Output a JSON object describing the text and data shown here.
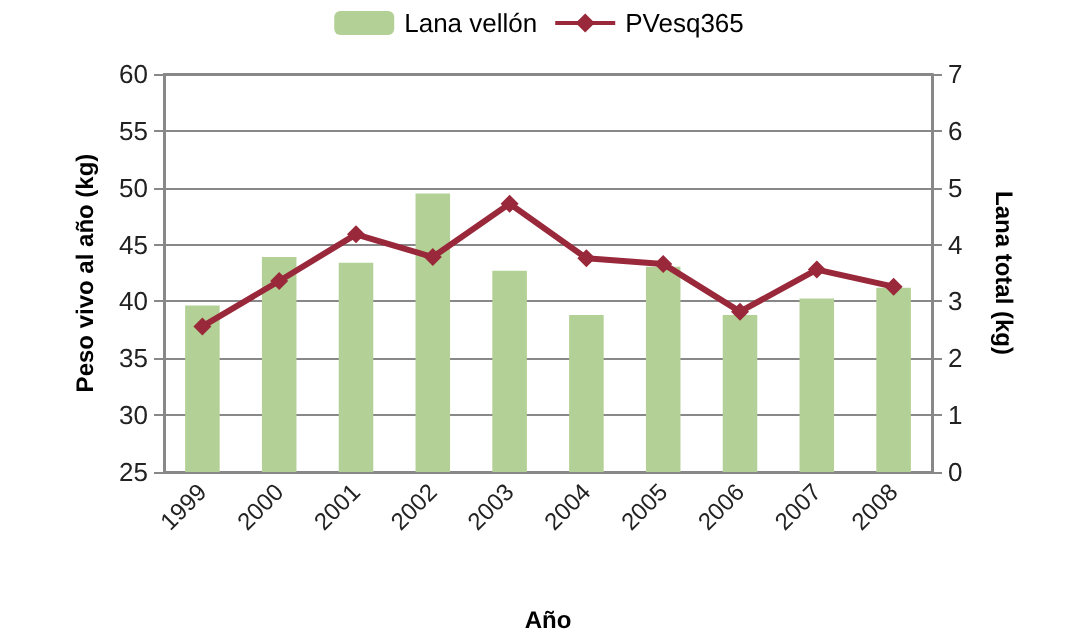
{
  "chart_data": {
    "type": "bar",
    "xlabel": "Año",
    "ylabel": "Peso vivo al año (kg)",
    "y2label": "Lana total (kg)",
    "categories": [
      "1999",
      "2000",
      "2001",
      "2002",
      "2003",
      "2004",
      "2005",
      "2006",
      "2007",
      "2008"
    ],
    "series": [
      {
        "name": "Lana vellón",
        "axis": "y2",
        "color": "#b3d196",
        "values": [
          2.93,
          3.78,
          3.68,
          4.9,
          3.54,
          2.76,
          3.61,
          2.76,
          3.05,
          3.24
        ]
      },
      {
        "name": "PVesq365",
        "type": "line",
        "color": "#99283a",
        "marker": "diamond",
        "values": [
          37.8,
          41.8,
          45.9,
          43.9,
          48.6,
          43.8,
          43.3,
          39.1,
          42.8,
          41.3
        ]
      }
    ],
    "ylim": [
      25,
      60
    ],
    "yticks": [
      25,
      30,
      35,
      40,
      45,
      50,
      55,
      60
    ],
    "y2lim": [
      0,
      7
    ],
    "y2ticks": [
      0,
      1,
      2,
      3,
      4,
      5,
      6,
      7
    ],
    "grid": "y",
    "legend": "top"
  }
}
